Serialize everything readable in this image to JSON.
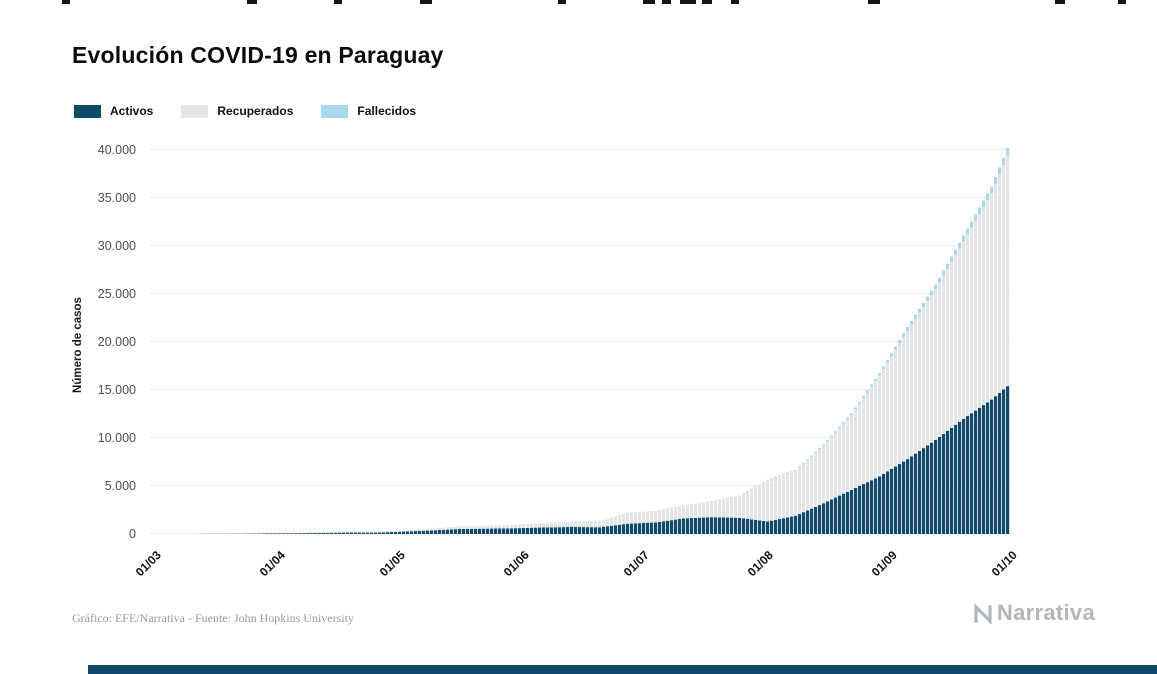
{
  "title": "Evolución COVID-19 en Paraguay",
  "legend": [
    {
      "label": "Activos",
      "color": "#0f4a6d"
    },
    {
      "label": "Recuperados",
      "color": "#e4e5e6"
    },
    {
      "label": "Fallecidos",
      "color": "#a9d8ee"
    }
  ],
  "footer": {
    "credit": "Gráfico: EFE/Narrativa - Fuente: John Hopkins University",
    "logo_text": "Narrativa"
  },
  "chart_data": {
    "type": "area",
    "stacked": true,
    "title": "Evolución COVID-19 en Paraguay",
    "xlabel": "",
    "ylabel": "Número de casos",
    "ylim": [
      0,
      40000
    ],
    "grid": true,
    "legend_position": "top-left",
    "x_ticks": [
      "01/03",
      "01/04",
      "01/05",
      "01/06",
      "01/07",
      "01/08",
      "01/09",
      "01/10"
    ],
    "y_ticks": [
      "0",
      "5.000",
      "10.000",
      "15.000",
      "20.000",
      "25.000",
      "30.000",
      "35.000",
      "40.000"
    ],
    "note": "Daily stacked bars; values sampled from chart at the dates below (dd/mm), linearly interpolated between samples.",
    "dates": [
      "01/03",
      "08/03",
      "15/03",
      "22/03",
      "29/03",
      "05/04",
      "12/04",
      "19/04",
      "26/04",
      "03/05",
      "10/05",
      "17/05",
      "24/05",
      "31/05",
      "07/06",
      "14/06",
      "21/06",
      "28/06",
      "05/07",
      "12/07",
      "19/07",
      "26/07",
      "02/08",
      "09/08",
      "16/08",
      "23/08",
      "30/08",
      "06/09",
      "13/09",
      "20/09",
      "27/09",
      "01/10"
    ],
    "series": [
      {
        "name": "Activos",
        "color": "#0f4a6d",
        "values": [
          0,
          1,
          8,
          19,
          56,
          86,
          108,
          155,
          148,
          250,
          370,
          520,
          560,
          600,
          680,
          730,
          700,
          1069,
          1200,
          1620,
          1750,
          1680,
          1300,
          1900,
          3200,
          4600,
          6000,
          7800,
          9800,
          12000,
          14000,
          15400
        ]
      },
      {
        "name": "Recuperados",
        "color": "#e4e5e6",
        "values": [
          0,
          0,
          0,
          1,
          3,
          13,
          21,
          44,
          72,
          110,
          183,
          255,
          294,
          353,
          444,
          547,
          679,
          1106,
          1180,
          1330,
          1640,
          2280,
          4290,
          4700,
          6000,
          7800,
          10500,
          13400,
          15700,
          18500,
          21500,
          24000
        ]
      },
      {
        "name": "Fallecidos",
        "color": "#a9d8ee",
        "values": [
          0,
          0,
          0,
          2,
          3,
          5,
          6,
          8,
          9,
          10,
          11,
          11,
          11,
          11,
          11,
          12,
          13,
          16,
          25,
          30,
          35,
          40,
          54,
          81,
          120,
          175,
          260,
          380,
          480,
          590,
          700,
          800
        ]
      }
    ]
  }
}
